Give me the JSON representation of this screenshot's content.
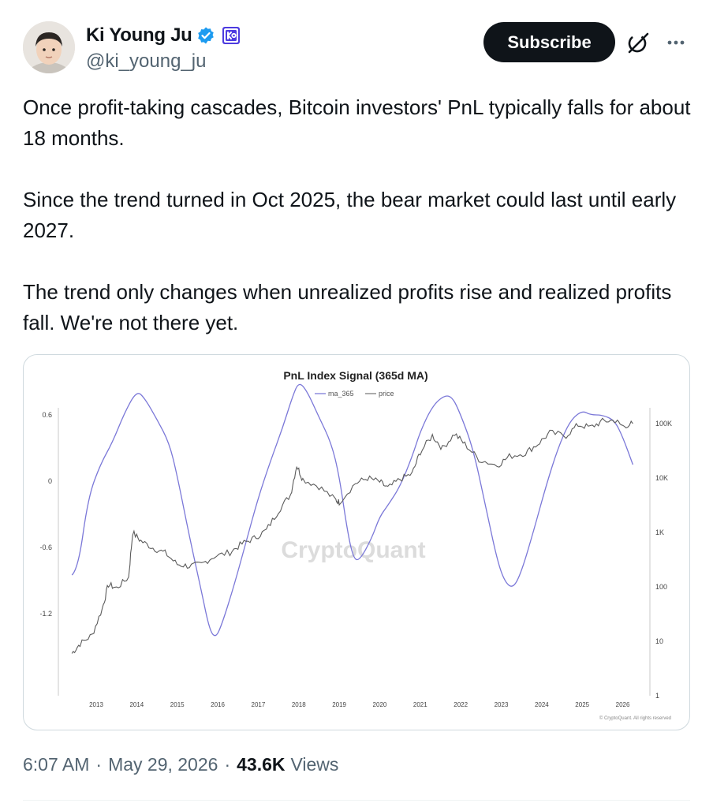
{
  "author": {
    "display_name": "Ki Young Ju",
    "handle": "@ki_young_ju",
    "verified_icon": "verified-badge-icon",
    "affiliate_icon": "cryptoquant-affiliate-icon"
  },
  "actions": {
    "subscribe_label": "Subscribe",
    "grok_icon": "grok-icon",
    "more_icon": "more-dots-icon"
  },
  "tweet": {
    "paragraphs": [
      "Once profit-taking cascades, Bitcoin investors' PnL typically falls for about 18 months.",
      "Since the trend turned in Oct 2025, the bear market could last until early 2027.",
      "The trend only changes when unrealized profits rise and realized profits fall. We're not there yet."
    ]
  },
  "meta": {
    "time": "6:07 AM",
    "date": "May 29, 2026",
    "views_count": "43.6K",
    "views_label": "Views"
  },
  "colors": {
    "accent_verified": "#1d9bf0",
    "affiliate_badge": "#4d3be0",
    "ma_line": "#7b78d8",
    "price_line": "#5b5b5b",
    "watermark": "#dcdcdc"
  },
  "chart_data": {
    "type": "line",
    "title": "PnL Index Signal (365d MA)",
    "legend": [
      "ma_365",
      "price"
    ],
    "legend_position": "top-center",
    "watermark": "CryptoQuant",
    "footer": "© CryptoQuant. All rights reserved",
    "x_ticks": [
      "2013",
      "2014",
      "2015",
      "2016",
      "2017",
      "2018",
      "2019",
      "2020",
      "2021",
      "2022",
      "2023",
      "2024",
      "2025",
      "2026"
    ],
    "left_ticks": [
      "0.6",
      "0",
      "-0.6",
      "-1.2"
    ],
    "right_ticks": [
      "100K",
      "10K",
      "1K",
      "100",
      "10",
      "1"
    ],
    "left_axis": {
      "min": -1.5,
      "max": 0.9
    },
    "right_axis": {
      "scale": "log",
      "min": 1,
      "max": 200000
    },
    "grid": false,
    "series": [
      {
        "name": "ma_365",
        "axis": "left",
        "points": [
          [
            2012.4,
            -0.85
          ],
          [
            2012.55,
            -0.8
          ],
          [
            2012.8,
            -0.15
          ],
          [
            2013.1,
            0.15
          ],
          [
            2013.4,
            0.35
          ],
          [
            2013.7,
            0.62
          ],
          [
            2014.0,
            0.82
          ],
          [
            2014.2,
            0.75
          ],
          [
            2014.5,
            0.56
          ],
          [
            2014.8,
            0.35
          ],
          [
            2015.0,
            0.05
          ],
          [
            2015.3,
            -0.5
          ],
          [
            2015.6,
            -1.0
          ],
          [
            2015.8,
            -1.35
          ],
          [
            2015.95,
            -1.42
          ],
          [
            2016.1,
            -1.3
          ],
          [
            2016.4,
            -0.95
          ],
          [
            2016.7,
            -0.55
          ],
          [
            2017.0,
            -0.15
          ],
          [
            2017.3,
            0.18
          ],
          [
            2017.6,
            0.48
          ],
          [
            2017.85,
            0.77
          ],
          [
            2018.0,
            0.9
          ],
          [
            2018.2,
            0.82
          ],
          [
            2018.5,
            0.58
          ],
          [
            2018.8,
            0.35
          ],
          [
            2019.0,
            0.05
          ],
          [
            2019.2,
            -0.45
          ],
          [
            2019.35,
            -0.7
          ],
          [
            2019.5,
            -0.72
          ],
          [
            2019.8,
            -0.52
          ],
          [
            2020.0,
            -0.32
          ],
          [
            2020.2,
            -0.22
          ],
          [
            2020.5,
            -0.05
          ],
          [
            2020.8,
            0.22
          ],
          [
            2021.0,
            0.45
          ],
          [
            2021.3,
            0.68
          ],
          [
            2021.6,
            0.78
          ],
          [
            2021.8,
            0.76
          ],
          [
            2022.0,
            0.6
          ],
          [
            2022.3,
            0.3
          ],
          [
            2022.6,
            -0.2
          ],
          [
            2022.9,
            -0.72
          ],
          [
            2023.1,
            -0.92
          ],
          [
            2023.3,
            -0.97
          ],
          [
            2023.5,
            -0.82
          ],
          [
            2023.8,
            -0.45
          ],
          [
            2024.1,
            -0.05
          ],
          [
            2024.4,
            0.3
          ],
          [
            2024.7,
            0.55
          ],
          [
            2025.0,
            0.64
          ],
          [
            2025.2,
            0.6
          ],
          [
            2025.5,
            0.6
          ],
          [
            2025.8,
            0.55
          ],
          [
            2026.0,
            0.4
          ],
          [
            2026.25,
            0.15
          ]
        ]
      },
      {
        "name": "price",
        "axis": "right",
        "points": [
          [
            2012.4,
            6
          ],
          [
            2012.6,
            9
          ],
          [
            2012.9,
            13
          ],
          [
            2013.15,
            40
          ],
          [
            2013.3,
            110
          ],
          [
            2013.5,
            95
          ],
          [
            2013.8,
            150
          ],
          [
            2013.9,
            1000
          ],
          [
            2014.1,
            700
          ],
          [
            2014.4,
            520
          ],
          [
            2014.7,
            420
          ],
          [
            2015.0,
            260
          ],
          [
            2015.3,
            240
          ],
          [
            2015.6,
            260
          ],
          [
            2015.9,
            360
          ],
          [
            2016.3,
            430
          ],
          [
            2016.6,
            620
          ],
          [
            2016.9,
            780
          ],
          [
            2017.2,
            1100
          ],
          [
            2017.5,
            2500
          ],
          [
            2017.8,
            5000
          ],
          [
            2017.95,
            17000
          ],
          [
            2018.1,
            9500
          ],
          [
            2018.5,
            7000
          ],
          [
            2018.9,
            4000
          ],
          [
            2019.0,
            3600
          ],
          [
            2019.4,
            8000
          ],
          [
            2019.7,
            10000
          ],
          [
            2020.0,
            8500
          ],
          [
            2020.2,
            6500
          ],
          [
            2020.5,
            9500
          ],
          [
            2020.8,
            12000
          ],
          [
            2021.0,
            30000
          ],
          [
            2021.3,
            60000
          ],
          [
            2021.55,
            35000
          ],
          [
            2021.85,
            65000
          ],
          [
            2022.1,
            42000
          ],
          [
            2022.45,
            22000
          ],
          [
            2022.9,
            17000
          ],
          [
            2023.2,
            25000
          ],
          [
            2023.6,
            29000
          ],
          [
            2023.9,
            42000
          ],
          [
            2024.2,
            68000
          ],
          [
            2024.6,
            60000
          ],
          [
            2024.9,
            95000
          ],
          [
            2025.2,
            85000
          ],
          [
            2025.5,
            110000
          ],
          [
            2025.8,
            115000
          ],
          [
            2026.0,
            90000
          ],
          [
            2026.25,
            100000
          ]
        ]
      }
    ]
  }
}
